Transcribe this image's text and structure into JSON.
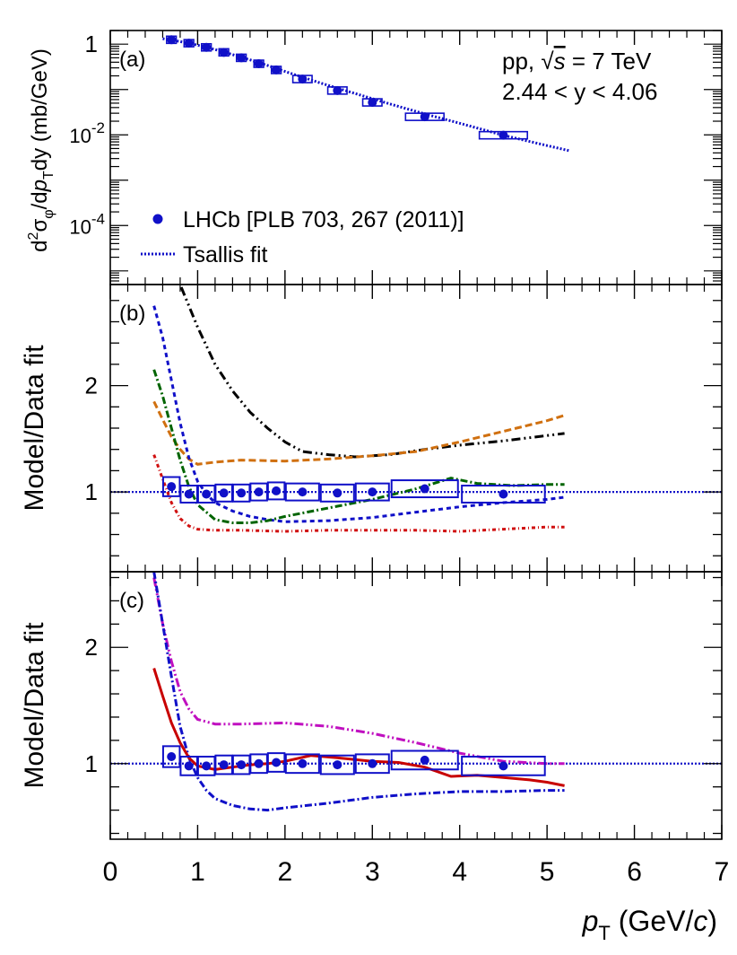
{
  "chart_data": {
    "type": "scatter",
    "x_axis": {
      "range": [
        0,
        7
      ],
      "ticks": [
        0,
        1,
        2,
        3,
        4,
        5,
        6,
        7
      ],
      "tick_labels": [
        "0",
        "1",
        "2",
        "3",
        "4",
        "5",
        "6",
        "7"
      ],
      "label_italic": "p",
      "label_sub": "T",
      "label_rest": "(GeV/",
      "label_c": "c",
      "label_close": ")"
    },
    "panels": [
      {
        "id": "a",
        "tag": "(a)",
        "yscale": "log",
        "ylim": [
          5e-06,
          2
        ],
        "ylabel_parts": [
          "d",
          "2",
          "σ",
          "φ",
          "/d",
          "p",
          "T",
          "dy (mb/GeV)"
        ],
        "yticks": [
          {
            "value": 1,
            "base": "1",
            "exp": ""
          },
          {
            "value": 0.01,
            "base": "10",
            "exp": "-2"
          },
          {
            "value": 0.0001,
            "base": "10",
            "exp": "-4"
          }
        ],
        "energy_text": "pp,",
        "energy_sqrt": "√",
        "energy_s": "s",
        "energy_value": "= 7 TeV",
        "rapidity_text": "2.44 < y < 4.06",
        "legend": [
          {
            "label": "LHCb [PLB 703, 267 (2011)]",
            "marker": "circle",
            "color": "#1010c8"
          },
          {
            "label": "Tsallis fit",
            "marker": "dotted-line",
            "color": "#1010c8"
          }
        ],
        "data": {
          "x": [
            0.7,
            0.9,
            1.1,
            1.3,
            1.5,
            1.7,
            1.9,
            2.2,
            2.6,
            3.0,
            3.6,
            4.5
          ],
          "xerr": [
            0.1,
            0.1,
            0.1,
            0.1,
            0.1,
            0.1,
            0.1,
            0.2,
            0.2,
            0.2,
            0.4,
            0.5
          ],
          "y": [
            1.25,
            1.05,
            0.85,
            0.66,
            0.5,
            0.37,
            0.27,
            0.17,
            0.095,
            0.052,
            0.025,
            0.0098
          ]
        },
        "fit": {
          "color": "#1010c8",
          "x": [
            0.6,
            0.8,
            1.0,
            1.2,
            1.4,
            1.6,
            1.8,
            2.0,
            2.4,
            2.8,
            3.2,
            3.6,
            4.0,
            4.5,
            5.0,
            5.25
          ],
          "y": [
            1.32,
            1.14,
            0.95,
            0.76,
            0.59,
            0.45,
            0.34,
            0.25,
            0.14,
            0.082,
            0.048,
            0.029,
            0.018,
            0.0098,
            0.0058,
            0.0045
          ]
        }
      },
      {
        "id": "b",
        "tag": "(b)",
        "yscale": "linear",
        "ylim": [
          0.25,
          2.95
        ],
        "ylabel": "Model/Data fit",
        "yticks": [
          {
            "value": 1,
            "base": "1",
            "exp": ""
          },
          {
            "value": 2,
            "base": "2",
            "exp": ""
          }
        ],
        "data": {
          "x": [
            0.7,
            0.9,
            1.1,
            1.3,
            1.5,
            1.7,
            1.9,
            2.2,
            2.6,
            3.0,
            3.6,
            4.5
          ],
          "xerr": [
            0.1,
            0.1,
            0.1,
            0.1,
            0.1,
            0.1,
            0.1,
            0.2,
            0.2,
            0.2,
            0.4,
            0.5
          ],
          "y": [
            1.05,
            0.98,
            0.98,
            0.99,
            0.99,
            1.0,
            1.01,
            1.0,
            0.99,
            1.0,
            1.03,
            0.98
          ],
          "box_half_height": [
            0.09,
            0.08,
            0.08,
            0.08,
            0.08,
            0.08,
            0.08,
            0.08,
            0.08,
            0.08,
            0.08,
            0.08
          ]
        },
        "curves": [
          {
            "name": "black-dash-dot-dot",
            "color": "#000000",
            "dash": "10 4 2 4 2 4",
            "x": [
              0.6,
              0.8,
              1.0,
              1.2,
              1.4,
              1.6,
              1.8,
              2.0,
              2.2,
              2.5,
              2.8,
              3.2,
              3.6,
              4.0,
              4.5,
              5.0,
              5.2
            ],
            "y": [
              3.05,
              2.95,
              2.55,
              2.2,
              1.95,
              1.75,
              1.6,
              1.47,
              1.38,
              1.35,
              1.33,
              1.35,
              1.4,
              1.44,
              1.48,
              1.53,
              1.55
            ]
          },
          {
            "name": "orange-dashed",
            "color": "#d07010",
            "dash": "8 4",
            "x": [
              0.5,
              0.6,
              0.7,
              0.8,
              0.9,
              1.0,
              1.2,
              1.5,
              2.0,
              2.5,
              3.0,
              3.5,
              4.0,
              4.5,
              5.0,
              5.2
            ],
            "y": [
              1.85,
              1.68,
              1.52,
              1.4,
              1.31,
              1.26,
              1.28,
              1.3,
              1.29,
              1.31,
              1.34,
              1.38,
              1.47,
              1.57,
              1.67,
              1.72
            ]
          },
          {
            "name": "blue-dashed",
            "color": "#1010c8",
            "dash": "5 4",
            "x": [
              0.5,
              0.6,
              0.7,
              0.8,
              0.9,
              1.0,
              1.1,
              1.2,
              1.4,
              1.6,
              1.8,
              2.0,
              2.5,
              3.0,
              3.5,
              4.0,
              4.5,
              5.0,
              5.2
            ],
            "y": [
              2.75,
              2.45,
              2.05,
              1.65,
              1.32,
              1.1,
              0.98,
              0.9,
              0.82,
              0.77,
              0.74,
              0.72,
              0.73,
              0.76,
              0.81,
              0.86,
              0.9,
              0.93,
              0.95
            ]
          },
          {
            "name": "green-dash-dot",
            "color": "#006400",
            "dash": "8 3 2 3",
            "x": [
              0.5,
              0.6,
              0.7,
              0.8,
              0.9,
              1.0,
              1.2,
              1.4,
              1.6,
              1.8,
              2.0,
              2.5,
              3.0,
              3.5,
              3.9,
              4.2,
              4.6,
              5.0,
              5.2
            ],
            "y": [
              2.15,
              1.9,
              1.6,
              1.3,
              1.05,
              0.88,
              0.74,
              0.71,
              0.71,
              0.73,
              0.77,
              0.85,
              0.93,
              1.03,
              1.13,
              1.08,
              1.06,
              1.07,
              1.07
            ]
          },
          {
            "name": "red-dash-dot",
            "color": "#d01010",
            "dash": "4 3 1 3",
            "x": [
              0.5,
              0.6,
              0.7,
              0.8,
              0.9,
              1.0,
              1.2,
              1.5,
              2.0,
              2.5,
              3.0,
              3.5,
              4.0,
              4.5,
              5.0,
              5.2
            ],
            "y": [
              1.35,
              1.12,
              0.9,
              0.75,
              0.68,
              0.65,
              0.64,
              0.64,
              0.63,
              0.64,
              0.64,
              0.64,
              0.63,
              0.65,
              0.67,
              0.67
            ]
          }
        ]
      },
      {
        "id": "c",
        "tag": "(c)",
        "yscale": "linear",
        "ylim": [
          0.35,
          2.65
        ],
        "ylabel": "Model/Data fit",
        "yticks": [
          {
            "value": 1,
            "base": "1",
            "exp": ""
          },
          {
            "value": 2,
            "base": "2",
            "exp": ""
          }
        ],
        "data": {
          "x": [
            0.7,
            0.9,
            1.1,
            1.3,
            1.5,
            1.7,
            1.9,
            2.2,
            2.6,
            3.0,
            3.6,
            4.5
          ],
          "xerr": [
            0.1,
            0.1,
            0.1,
            0.1,
            0.1,
            0.1,
            0.1,
            0.2,
            0.2,
            0.2,
            0.4,
            0.5
          ],
          "y": [
            1.06,
            0.98,
            0.98,
            0.99,
            0.99,
            1.0,
            1.01,
            1.0,
            0.99,
            1.0,
            1.03,
            0.98
          ],
          "box_half_height": [
            0.09,
            0.08,
            0.08,
            0.08,
            0.08,
            0.08,
            0.08,
            0.08,
            0.08,
            0.08,
            0.08,
            0.08
          ]
        },
        "curves": [
          {
            "name": "magenta-dash-dot-dot",
            "color": "#c010c0",
            "dash": "10 3 2 3 2 3",
            "x": [
              0.5,
              0.6,
              0.7,
              0.8,
              0.9,
              1.0,
              1.2,
              1.5,
              2.0,
              2.5,
              3.0,
              3.5,
              4.0,
              4.5,
              5.0,
              5.2
            ],
            "y": [
              2.6,
              2.2,
              1.88,
              1.62,
              1.47,
              1.38,
              1.34,
              1.34,
              1.35,
              1.32,
              1.26,
              1.18,
              1.09,
              1.02,
              1.0,
              1.0
            ]
          },
          {
            "name": "blue-dash-dot",
            "color": "#1010c8",
            "dash": "8 3 2 3",
            "x": [
              0.5,
              0.6,
              0.7,
              0.8,
              0.9,
              1.0,
              1.1,
              1.2,
              1.4,
              1.6,
              1.8,
              2.0,
              2.5,
              3.0,
              3.5,
              4.0,
              4.5,
              5.0,
              5.2
            ],
            "y": [
              2.65,
              2.2,
              1.75,
              1.32,
              1.05,
              0.88,
              0.77,
              0.7,
              0.64,
              0.61,
              0.6,
              0.62,
              0.66,
              0.71,
              0.74,
              0.76,
              0.76,
              0.77,
              0.77
            ]
          },
          {
            "name": "red-solid",
            "color": "#c80000",
            "dash": "",
            "x": [
              0.5,
              0.6,
              0.7,
              0.8,
              0.9,
              1.0,
              1.2,
              1.4,
              1.6,
              1.8,
              2.0,
              2.3,
              2.6,
              3.0,
              3.3,
              3.6,
              3.9,
              4.2,
              4.5,
              4.8,
              5.0,
              5.2
            ],
            "y": [
              1.82,
              1.58,
              1.35,
              1.18,
              1.05,
              0.98,
              0.95,
              0.97,
              0.99,
              1.0,
              1.02,
              1.07,
              1.05,
              1.02,
              1.01,
              0.97,
              0.89,
              0.9,
              0.88,
              0.86,
              0.84,
              0.81
            ]
          }
        ]
      }
    ]
  }
}
